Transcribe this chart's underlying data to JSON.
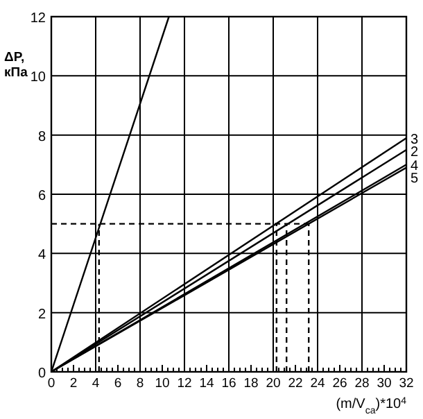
{
  "chart_data": {
    "type": "line",
    "ylabel": "ΔP, кПа",
    "xlabel": "(m/V$_{са}$)*10$^{4}$",
    "xlim": [
      0,
      32
    ],
    "ylim": [
      0,
      12
    ],
    "xticks": [
      0,
      {
        "value": 0.5,
        "label": null
      },
      {
        "value": 1,
        "label": null
      },
      {
        "value": 1.5,
        "label": null
      },
      2,
      {
        "value": 2.5,
        "label": null
      },
      {
        "value": 3,
        "label": null
      },
      {
        "value": 3.5,
        "label": null
      },
      4,
      {
        "value": 4.5,
        "label": null
      },
      {
        "value": 5,
        "label": null
      },
      {
        "value": 5.5,
        "label": null
      },
      6,
      {
        "value": 6.5,
        "label": null
      },
      {
        "value": 7,
        "label": null
      },
      {
        "value": 7.5,
        "label": null
      },
      8,
      {
        "value": 8.5,
        "label": null
      },
      {
        "value": 9,
        "label": null
      },
      {
        "value": 9.5,
        "label": null
      },
      10,
      {
        "value": 10.5,
        "label": null
      },
      {
        "value": 11,
        "label": null
      },
      {
        "value": 11.5,
        "label": null
      },
      12,
      {
        "value": 12.5,
        "label": null
      },
      {
        "value": 13,
        "label": null
      },
      {
        "value": 13.5,
        "label": null
      },
      14,
      {
        "value": 14.5,
        "label": null
      },
      {
        "value": 15,
        "label": null
      },
      {
        "value": 15.5,
        "label": null
      },
      16,
      {
        "value": 16.5,
        "label": null
      },
      {
        "value": 17,
        "label": null
      },
      {
        "value": 17.5,
        "label": null
      },
      18,
      {
        "value": 18.5,
        "label": null
      },
      {
        "value": 19,
        "label": null
      },
      {
        "value": 19.5,
        "label": null
      },
      20,
      {
        "value": 20.5,
        "label": null
      },
      {
        "value": 21,
        "label": null
      },
      {
        "value": 21.5,
        "label": null
      },
      22,
      {
        "value": 22.5,
        "label": null
      },
      {
        "value": 23,
        "label": null
      },
      {
        "value": 23.5,
        "label": null
      },
      24,
      {
        "value": 24.5,
        "label": null
      },
      {
        "value": 25,
        "label": null
      },
      {
        "value": 25.5,
        "label": null
      },
      26,
      {
        "value": 26.5,
        "label": null
      },
      {
        "value": 27,
        "label": null
      },
      {
        "value": 27.5,
        "label": null
      },
      28,
      {
        "value": 28.5,
        "label": null
      },
      {
        "value": 29,
        "label": null
      },
      {
        "value": 29.5,
        "label": null
      },
      30,
      {
        "value": 30.5,
        "label": null
      },
      {
        "value": 31,
        "label": null
      },
      {
        "value": 31.5,
        "label": null
      },
      32
    ],
    "yticks": [
      0,
      2,
      4,
      6,
      8,
      10,
      12
    ],
    "grid": "y",
    "marker": "none",
    "line_style": "solid",
    "legend": false,
    "ref_lines": [
      {
        "axis": "x",
        "value": 4,
        "color": "#000000"
      },
      {
        "axis": "x",
        "value": 8,
        "color": "#000000"
      },
      {
        "axis": "x",
        "value": 12,
        "color": "#000000"
      },
      {
        "axis": "x",
        "value": 16,
        "color": "#000000"
      },
      {
        "axis": "x",
        "value": 20,
        "color": "#000000"
      },
      {
        "axis": "x",
        "value": 24,
        "color": "#000000"
      },
      {
        "axis": "x",
        "value": 28,
        "color": "#000000"
      }
    ],
    "series": [
      {
        "color": "#000000",
        "x": [
          0,
          10.6
        ],
        "values": [
          0,
          12
        ]
      },
      {
        "name": "3",
        "color": "#000000",
        "x": [
          0,
          32
        ],
        "values": [
          0,
          7.9
        ]
      },
      {
        "name": "2",
        "color": "#000000",
        "x": [
          0,
          32
        ],
        "values": [
          0,
          7.5
        ]
      },
      {
        "name": "4",
        "color": "#000000",
        "x": [
          0,
          32
        ],
        "values": [
          0,
          7.0
        ]
      },
      {
        "name": "5",
        "color": "#000000",
        "x": [
          0,
          32
        ],
        "values": [
          0,
          6.9
        ]
      },
      {
        "color": "#000000",
        "line_style": "dashed",
        "x": [
          0,
          23.2
        ],
        "values": [
          5,
          5
        ]
      },
      {
        "color": "#000000",
        "line_style": "dashed",
        "x": [
          4.3,
          4.3
        ],
        "values": [
          0,
          5
        ]
      },
      {
        "color": "#000000",
        "line_style": "dashed",
        "x": [
          20.3,
          20.3
        ],
        "values": [
          0,
          5
        ]
      },
      {
        "color": "#000000",
        "line_style": "dashed",
        "x": [
          21.2,
          21.2
        ],
        "values": [
          0,
          5
        ]
      },
      {
        "color": "#000000",
        "line_style": "dashed",
        "x": [
          23.2,
          23.2
        ],
        "values": [
          0,
          5
        ]
      }
    ]
  }
}
